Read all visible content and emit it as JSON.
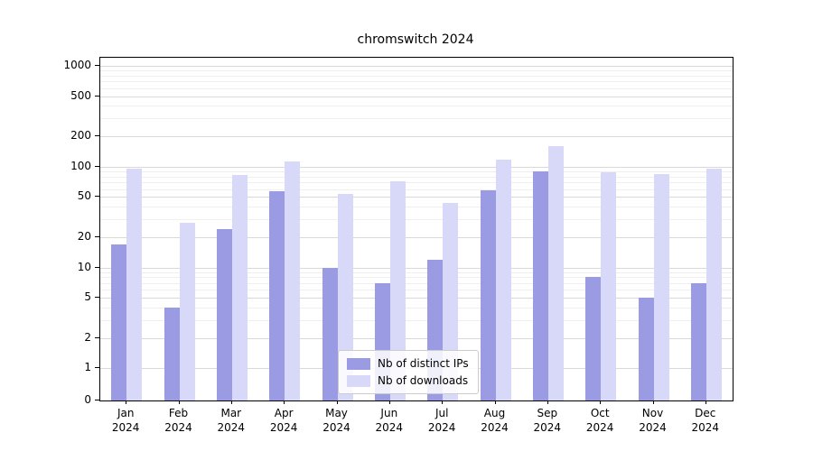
{
  "chart_data": {
    "type": "bar",
    "title": "chromswitch 2024",
    "categories": [
      "Jan\n2024",
      "Feb\n2024",
      "Mar\n2024",
      "Apr\n2024",
      "May\n2024",
      "Jun\n2024",
      "Jul\n2024",
      "Aug\n2024",
      "Sep\n2024",
      "Oct\n2024",
      "Nov\n2024",
      "Dec\n2024"
    ],
    "series": [
      {
        "name": "Nb of distinct IPs",
        "color": "#9b9be4",
        "values": [
          17,
          4,
          24,
          57,
          10,
          7,
          12,
          58,
          90,
          8,
          5,
          7
        ]
      },
      {
        "name": "Nb of downloads",
        "color": "#d8d8f8",
        "values": [
          95,
          28,
          83,
          112,
          54,
          72,
          44,
          118,
          160,
          88,
          85,
          95
        ]
      }
    ],
    "yscale": "symlog",
    "yticks": [
      0,
      1,
      2,
      5,
      10,
      20,
      50,
      100,
      200,
      500,
      1000
    ],
    "minor_yticks": [
      3,
      4,
      6,
      7,
      8,
      9,
      30,
      40,
      60,
      70,
      80,
      90,
      300,
      400,
      600,
      700,
      800,
      900
    ],
    "ylim": [
      0,
      1100
    ],
    "grid": true,
    "legend_position": "lower center",
    "grid_major_color": "#d9d9d9",
    "grid_minor_color": "#efefef"
  }
}
